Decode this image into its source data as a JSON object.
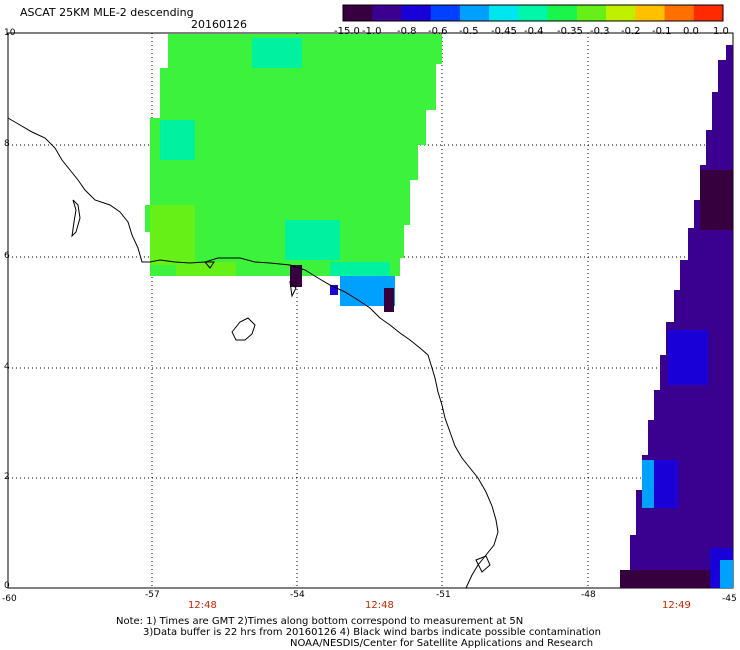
{
  "header": {
    "title": "ASCAT 25KM MLE-2 descending",
    "date": "20160126"
  },
  "colorbar": {
    "labels": [
      "-15.0",
      "-1.0",
      "-0.8",
      "-0.6",
      "-0.5",
      "-0.45",
      "-0.4",
      "-0.35",
      "-0.3",
      "-0.2",
      "-0.1",
      "0.0",
      "1.0"
    ],
    "colors": [
      "#35003d",
      "#3a0090",
      "#1800d6",
      "#0040ff",
      "#00a0ff",
      "#00e6f0",
      "#00f6a8",
      "#19f54a",
      "#66f018",
      "#c0f000",
      "#ffc000",
      "#ff7000",
      "#ff2a00"
    ]
  },
  "axes": {
    "x_labels": [
      "-60",
      "-57",
      "-54",
      "-51",
      "-48",
      "-45"
    ],
    "y_labels": [
      "10",
      "8",
      "6",
      "4",
      "2",
      "0"
    ]
  },
  "times": [
    "12:48",
    "12:48",
    "12:49"
  ],
  "notes": [
    "Note: 1) Times are GMT 2)Times along bottom correspond to measurement at 5N",
    "3)Data buffer is 22 hrs from 20160126 4) Black wind barbs indicate possible contamination",
    "NOAA/NESDIS/Center for Satellite Applications and Research"
  ],
  "swath_colors": {
    "green": "#3cf23c",
    "green_light": "#66f018",
    "cyan_green": "#00f2a0",
    "purple": "#3a0090",
    "dark_purple": "#35003d",
    "blue": "#1800d6",
    "cyan": "#00a0ff"
  }
}
